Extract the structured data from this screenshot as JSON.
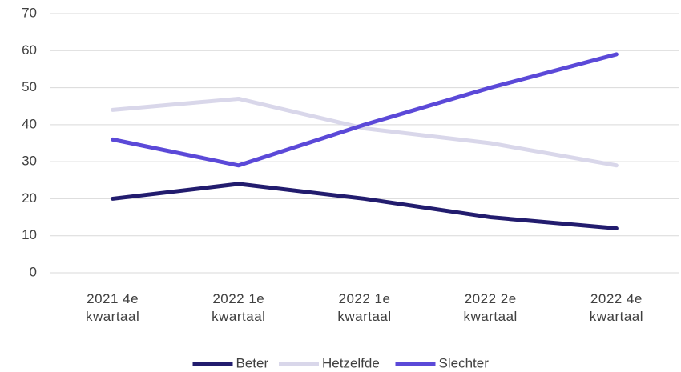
{
  "chart_data": {
    "type": "line",
    "categories": [
      "2021 4e kwartaal",
      "2022 1e kwartaal",
      "2022 1e kwartaal",
      "2022 2e kwartaal",
      "2022 4e kwartaal"
    ],
    "series": [
      {
        "name": "Beter",
        "color": "#221c6e",
        "values": [
          20,
          24,
          20,
          15,
          12
        ]
      },
      {
        "name": "Hetzelfde",
        "color": "#d9d7ea",
        "values": [
          44,
          47,
          39,
          35,
          29
        ]
      },
      {
        "name": "Slechter",
        "color": "#5b49d8",
        "values": [
          36,
          29,
          40,
          50,
          59
        ]
      }
    ],
    "ylim": [
      0,
      70
    ],
    "yticks": [
      0,
      10,
      20,
      30,
      40,
      50,
      60,
      70
    ],
    "grid": true,
    "legend": "bottom"
  }
}
